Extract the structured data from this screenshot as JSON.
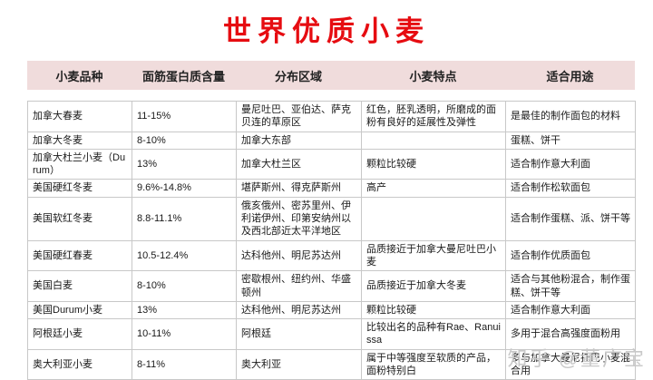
{
  "title": "世界优质小麦",
  "colors": {
    "title_red": "#e60c11",
    "header_bg": "#f0dcdc",
    "border": "#c8c8c8",
    "watermark": "#c9c9c9"
  },
  "table": {
    "headers": [
      "小麦品种",
      "面筋蛋白质含量",
      "分布区域",
      "小麦特点",
      "适合用途"
    ],
    "rows": [
      [
        "加拿大春麦",
        "11-15%",
        "曼尼吐巴、亚伯达、萨克贝连的草原区",
        "红色，胚乳透明，所磨成的面粉有良好的延展性及弹性",
        "是最佳的制作面包的材料"
      ],
      [
        "加拿大冬麦",
        "8-10%",
        "加拿大东部",
        "",
        "蛋糕、饼干"
      ],
      [
        "加拿大杜兰小麦（Durum）",
        "13%",
        "加拿大杜兰区",
        "颗粒比较硬",
        "适合制作意大利面"
      ],
      [
        "美国硬红冬麦",
        "9.6%-14.8%",
        "堪萨斯州、得克萨斯州",
        "高产",
        "适合制作松软面包"
      ],
      [
        "美国软红冬麦",
        "8.8-11.1%",
        "俄亥俄州、密苏里州、伊利诺伊州、印第安纳州以及西北部近太平洋地区",
        "",
        "适合制作蛋糕、派、饼干等"
      ],
      [
        "美国硬红春麦",
        "10.5-12.4%",
        "达科他州、明尼苏达州",
        "品质接近于加拿大曼尼吐巴小麦",
        "适合制作优质面包"
      ],
      [
        "美国白麦",
        "8-10%",
        "密歇根州、纽约州、华盛顿州",
        "品质接近于加拿大冬麦",
        "适合与其他粉混合，制作蛋糕、饼干等"
      ],
      [
        "美国Durum小麦",
        "13%",
        "达科他州、明尼苏达州",
        "颗粒比较硬",
        "适合制作意大利面"
      ],
      [
        "阿根廷小麦",
        "10-11%",
        "阿根廷",
        "比较出名的品种有Rae、Ranuissa",
        "多用于混合高强度面粉用"
      ],
      [
        "奥大利亚小麦",
        "8-11%",
        "奥大利亚",
        "属于中等强度至软质的产品，面粉特别白",
        "多与加拿大曼尼托巴小麦混合用"
      ]
    ]
  },
  "watermark": "知乎 @董广宝"
}
